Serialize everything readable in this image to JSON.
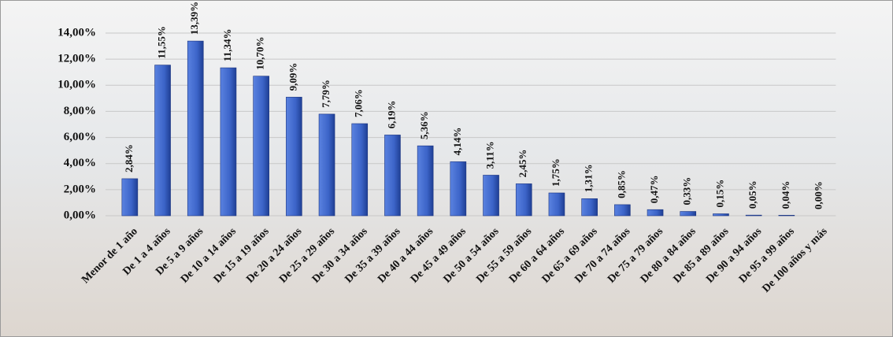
{
  "chart_data": {
    "type": "bar",
    "categories": [
      "Menor de 1 año",
      "De 1 a 4 años",
      "De 5 a 9 años",
      "De 10 a 14 años",
      "De 15 a 19 años",
      "De 20 a 24 años",
      "De 25 a 29 años",
      "De 30 a 34 años",
      "De 35 a 39 años",
      "De 40 a 44 años",
      "De 45 a 49 años",
      "De 50 a 54 años",
      "De 55 a 59 años",
      "De 60 a 64 años",
      "De 65 a 69 años",
      "De 70 a 74 años",
      "De 75 a 79 años",
      "De 80 a 84 años",
      "De 85 a 89 años",
      "De 90 a 94 años",
      "De 95 a 99 años",
      "De 100 años y más"
    ],
    "values": [
      2.84,
      11.55,
      13.39,
      11.34,
      10.7,
      9.09,
      7.79,
      7.06,
      6.19,
      5.36,
      4.14,
      3.11,
      2.45,
      1.75,
      1.31,
      0.85,
      0.47,
      0.33,
      0.15,
      0.05,
      0.04,
      0.0
    ],
    "value_labels": [
      "2,84%",
      "11,55%",
      "13,39%",
      "11,34%",
      "10,70%",
      "9,09%",
      "7,79%",
      "7,06%",
      "6,19%",
      "5,36%",
      "4,14%",
      "3,11%",
      "2,45%",
      "1,75%",
      "1,31%",
      "0,85%",
      "0,47%",
      "0,33%",
      "0,15%",
      "0,05%",
      "0,04%",
      "0,00%"
    ],
    "color": "#3c64c8",
    "ylim": [
      0,
      14
    ],
    "yticks": [
      {
        "value": 0,
        "label": "0,00%"
      },
      {
        "value": 2,
        "label": "2,00%"
      },
      {
        "value": 4,
        "label": "4,00%"
      },
      {
        "value": 6,
        "label": "6,00%"
      },
      {
        "value": 8,
        "label": "8,00%"
      },
      {
        "value": 10,
        "label": "10,00%"
      },
      {
        "value": 12,
        "label": "12,00%"
      },
      {
        "value": 14,
        "label": "14,00%"
      }
    ],
    "grid": true
  }
}
